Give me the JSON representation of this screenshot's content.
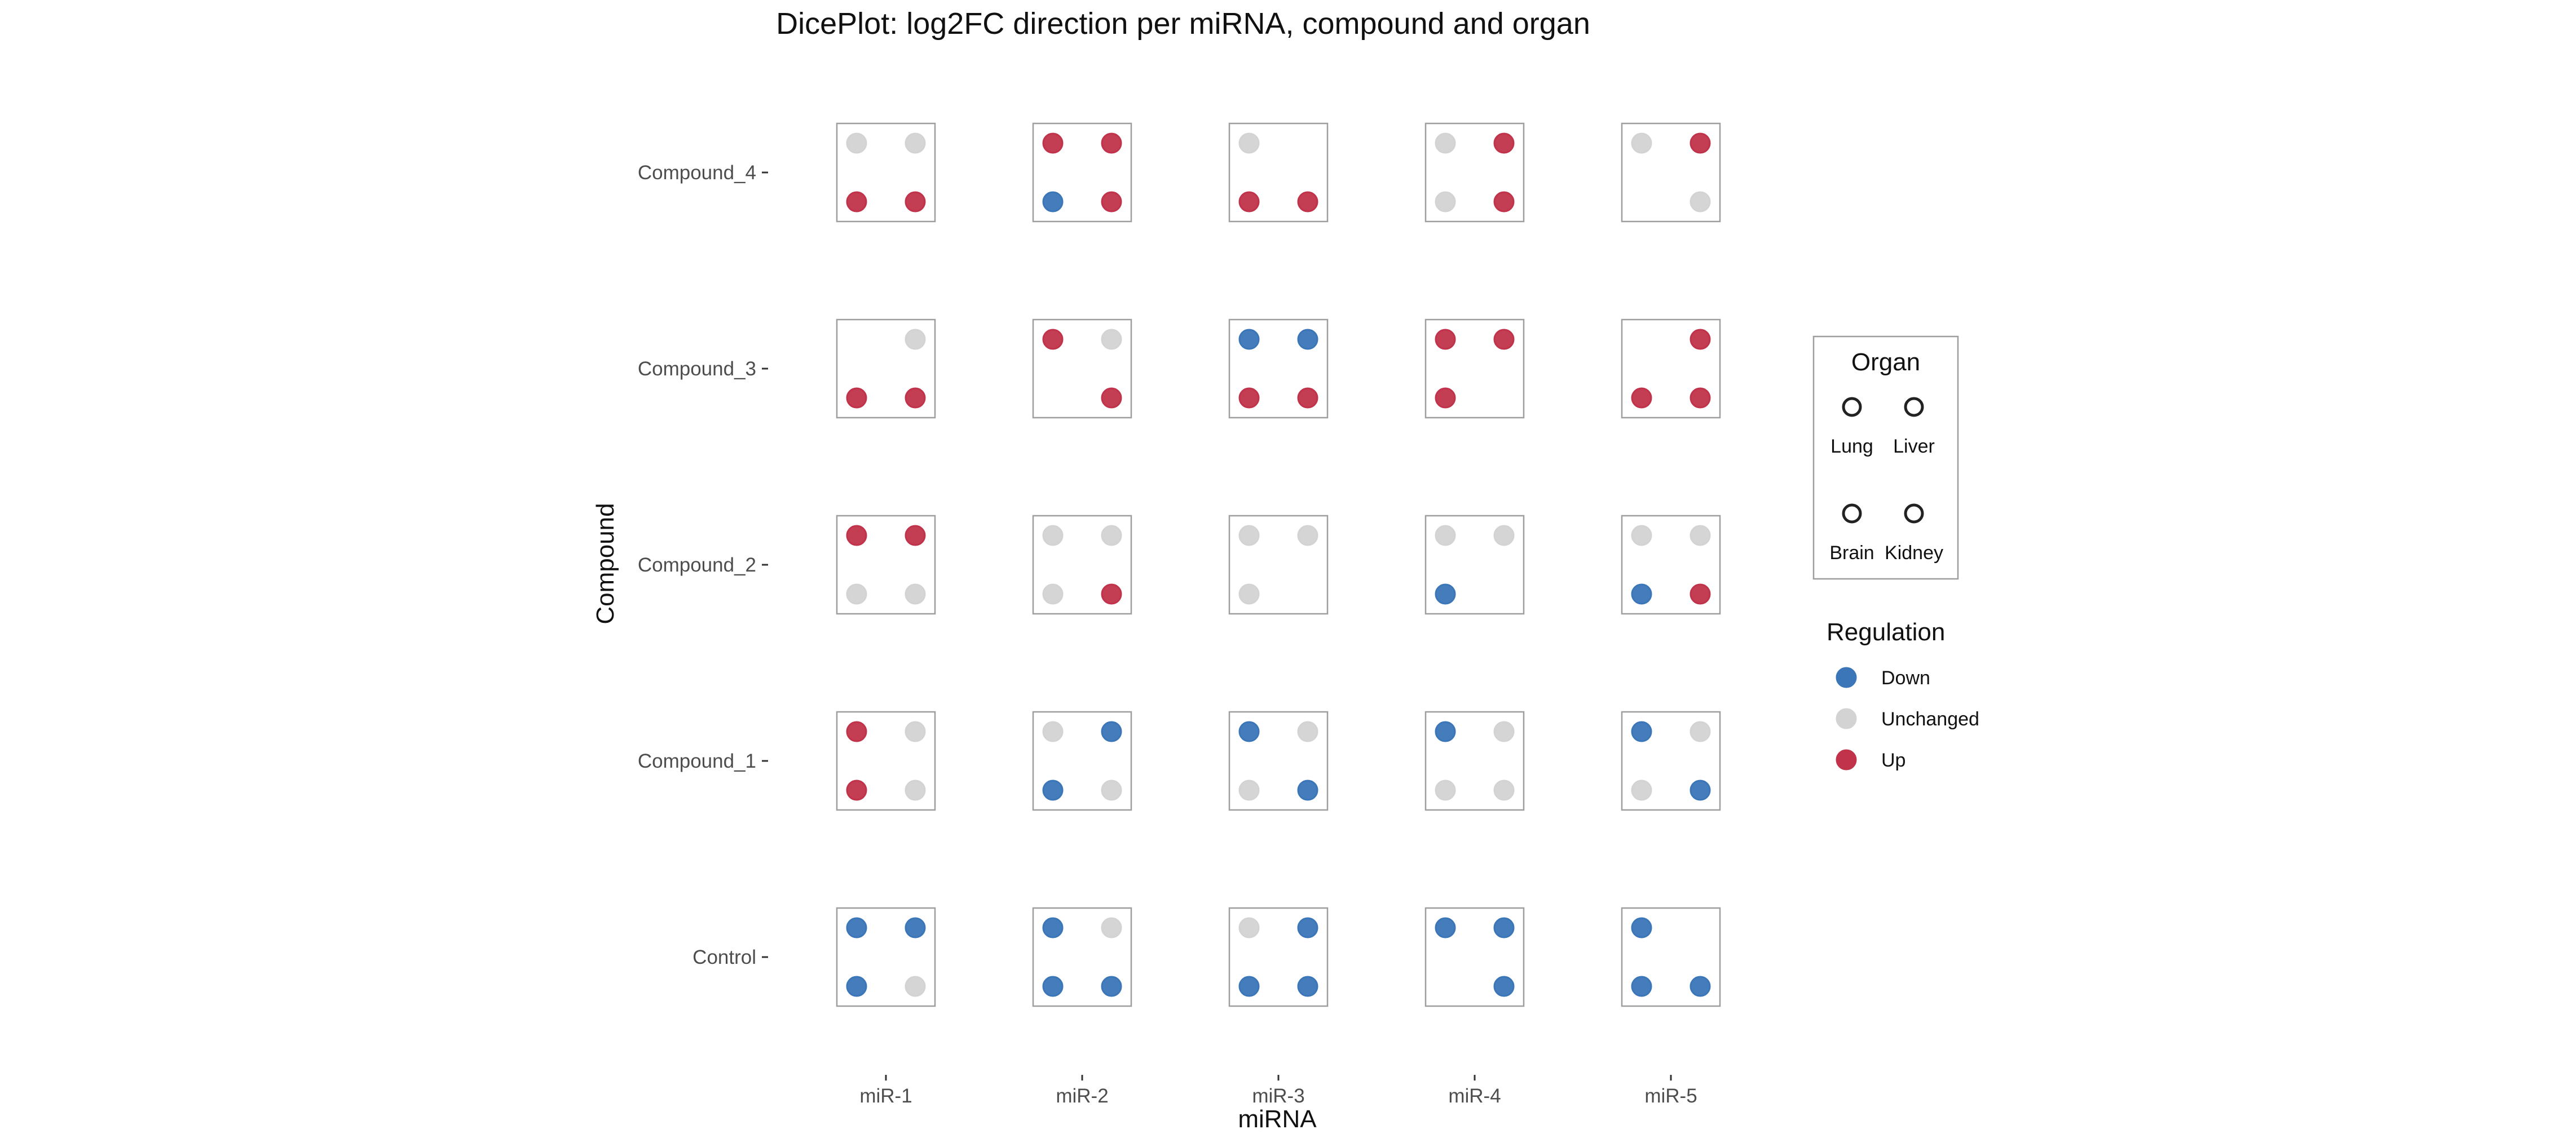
{
  "chart_data": {
    "type": "dice",
    "title": "DicePlot: log2FC direction per miRNA, compound and organ",
    "xlabel": "miRNA",
    "ylabel": "Compound",
    "x_categories": [
      "miR-1",
      "miR-2",
      "miR-3",
      "miR-4",
      "miR-5"
    ],
    "y_categories": [
      "Control",
      "Compound_1",
      "Compound_2",
      "Compound_3",
      "Compound_4"
    ],
    "dice_positions": [
      "Lung",
      "Liver",
      "Brain",
      "Kidney"
    ],
    "regulation_levels": [
      "Down",
      "Unchanged",
      "Up"
    ],
    "colors": {
      "Down": "#3B76B8",
      "Unchanged": "#D3D3D3",
      "Up": "#C0334A"
    },
    "grid": false,
    "legend_position": "right",
    "legends": {
      "organ": {
        "title": "Organ",
        "items": [
          "Lung",
          "Liver",
          "Brain",
          "Kidney"
        ]
      },
      "regulation": {
        "title": "Regulation",
        "items": [
          "Down",
          "Unchanged",
          "Up"
        ]
      }
    },
    "cells": [
      {
        "mirna": "miR-1",
        "compound": "Control",
        "Lung": "Down",
        "Liver": "Down",
        "Brain": "Down",
        "Kidney": "Unchanged"
      },
      {
        "mirna": "miR-2",
        "compound": "Control",
        "Lung": "Down",
        "Liver": "Unchanged",
        "Brain": "Down",
        "Kidney": "Down"
      },
      {
        "mirna": "miR-3",
        "compound": "Control",
        "Lung": "Unchanged",
        "Liver": "Down",
        "Brain": "Down",
        "Kidney": "Down"
      },
      {
        "mirna": "miR-4",
        "compound": "Control",
        "Lung": "Down",
        "Liver": "Down",
        "Brain": null,
        "Kidney": "Down"
      },
      {
        "mirna": "miR-5",
        "compound": "Control",
        "Lung": "Down",
        "Liver": null,
        "Brain": "Down",
        "Kidney": "Down"
      },
      {
        "mirna": "miR-1",
        "compound": "Compound_1",
        "Lung": "Up",
        "Liver": "Unchanged",
        "Brain": "Up",
        "Kidney": "Unchanged"
      },
      {
        "mirna": "miR-2",
        "compound": "Compound_1",
        "Lung": "Unchanged",
        "Liver": "Down",
        "Brain": "Down",
        "Kidney": "Unchanged"
      },
      {
        "mirna": "miR-3",
        "compound": "Compound_1",
        "Lung": "Down",
        "Liver": "Unchanged",
        "Brain": "Unchanged",
        "Kidney": "Down"
      },
      {
        "mirna": "miR-4",
        "compound": "Compound_1",
        "Lung": "Down",
        "Liver": "Unchanged",
        "Brain": "Unchanged",
        "Kidney": "Unchanged"
      },
      {
        "mirna": "miR-5",
        "compound": "Compound_1",
        "Lung": "Down",
        "Liver": "Unchanged",
        "Brain": "Unchanged",
        "Kidney": "Down"
      },
      {
        "mirna": "miR-1",
        "compound": "Compound_2",
        "Lung": "Up",
        "Liver": "Up",
        "Brain": "Unchanged",
        "Kidney": "Unchanged"
      },
      {
        "mirna": "miR-2",
        "compound": "Compound_2",
        "Lung": "Unchanged",
        "Liver": "Unchanged",
        "Brain": "Unchanged",
        "Kidney": "Up"
      },
      {
        "mirna": "miR-3",
        "compound": "Compound_2",
        "Lung": "Unchanged",
        "Liver": "Unchanged",
        "Brain": "Unchanged",
        "Kidney": null
      },
      {
        "mirna": "miR-4",
        "compound": "Compound_2",
        "Lung": "Unchanged",
        "Liver": "Unchanged",
        "Brain": "Down",
        "Kidney": null
      },
      {
        "mirna": "miR-5",
        "compound": "Compound_2",
        "Lung": "Unchanged",
        "Liver": "Unchanged",
        "Brain": "Down",
        "Kidney": "Up"
      },
      {
        "mirna": "miR-1",
        "compound": "Compound_3",
        "Lung": null,
        "Liver": "Unchanged",
        "Brain": "Up",
        "Kidney": "Up"
      },
      {
        "mirna": "miR-2",
        "compound": "Compound_3",
        "Lung": "Up",
        "Liver": "Unchanged",
        "Brain": null,
        "Kidney": "Up"
      },
      {
        "mirna": "miR-3",
        "compound": "Compound_3",
        "Lung": "Down",
        "Liver": "Down",
        "Brain": "Up",
        "Kidney": "Up"
      },
      {
        "mirna": "miR-4",
        "compound": "Compound_3",
        "Lung": "Up",
        "Liver": "Up",
        "Brain": "Up",
        "Kidney": null
      },
      {
        "mirna": "miR-5",
        "compound": "Compound_3",
        "Lung": null,
        "Liver": "Up",
        "Brain": "Up",
        "Kidney": "Up"
      },
      {
        "mirna": "miR-1",
        "compound": "Compound_4",
        "Lung": "Unchanged",
        "Liver": "Unchanged",
        "Brain": "Up",
        "Kidney": "Up"
      },
      {
        "mirna": "miR-2",
        "compound": "Compound_4",
        "Lung": "Up",
        "Liver": "Up",
        "Brain": "Down",
        "Kidney": "Up"
      },
      {
        "mirna": "miR-3",
        "compound": "Compound_4",
        "Lung": "Unchanged",
        "Liver": null,
        "Brain": "Up",
        "Kidney": "Up"
      },
      {
        "mirna": "miR-4",
        "compound": "Compound_4",
        "Lung": "Unchanged",
        "Liver": "Up",
        "Brain": "Unchanged",
        "Kidney": "Up"
      },
      {
        "mirna": "miR-5",
        "compound": "Compound_4",
        "Lung": "Unchanged",
        "Liver": "Up",
        "Brain": null,
        "Kidney": "Unchanged"
      }
    ]
  }
}
